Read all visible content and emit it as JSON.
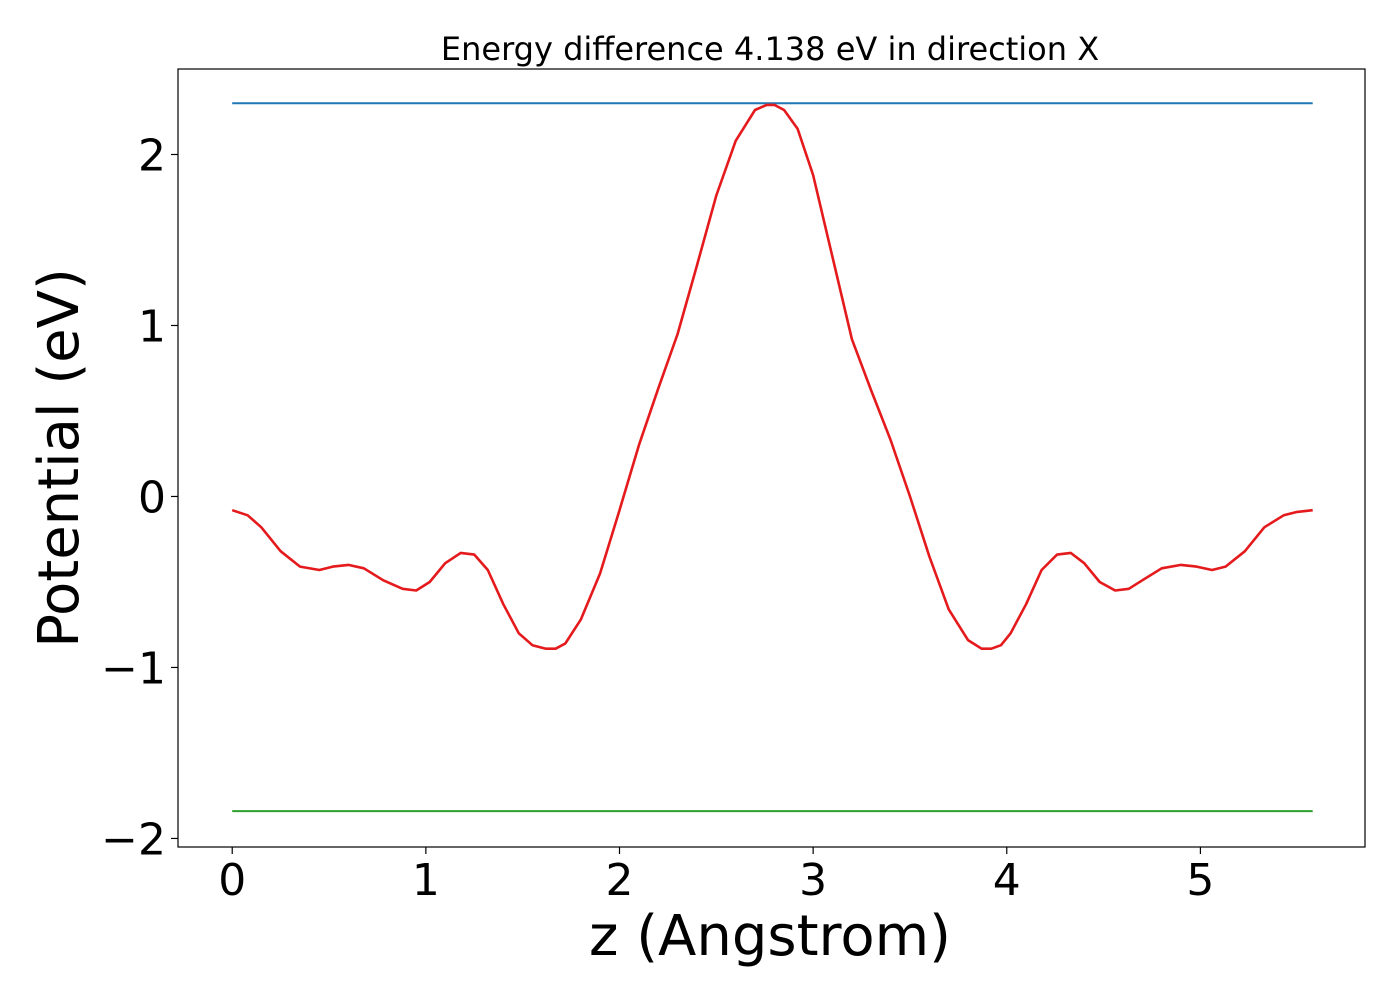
{
  "chart_data": {
    "type": "line",
    "title": "Energy difference 4.138 eV in direction X",
    "xlabel": "z (Angstrom)",
    "ylabel": "Potential (eV)",
    "xlim": [
      -0.28,
      5.85
    ],
    "ylim": [
      -2.05,
      2.5
    ],
    "grid": false,
    "x_ticks": [
      {
        "value": 0,
        "label": "0"
      },
      {
        "value": 1,
        "label": "1"
      },
      {
        "value": 2,
        "label": "2"
      },
      {
        "value": 3,
        "label": "3"
      },
      {
        "value": 4,
        "label": "4"
      },
      {
        "value": 5,
        "label": "5"
      }
    ],
    "y_ticks": [
      {
        "value": -2,
        "label": "−2"
      },
      {
        "value": -1,
        "label": "−1"
      },
      {
        "value": 0,
        "label": "0"
      },
      {
        "value": 1,
        "label": "1"
      },
      {
        "value": 2,
        "label": "2"
      }
    ],
    "series": [
      {
        "color": "#1f77b4",
        "x": [
          0,
          5.58
        ],
        "y": [
          2.3,
          2.3
        ]
      },
      {
        "color": "#2ca02c",
        "x": [
          0,
          5.58
        ],
        "y": [
          -1.84,
          -1.84
        ]
      },
      {
        "color": "#e41a1c",
        "x": [
          0,
          0.08,
          0.15,
          0.25,
          0.35,
          0.45,
          0.52,
          0.6,
          0.68,
          0.78,
          0.88,
          0.95,
          1.02,
          1.1,
          1.18,
          1.25,
          1.32,
          1.4,
          1.48,
          1.55,
          1.62,
          1.67,
          1.72,
          1.8,
          1.9,
          2.0,
          2.1,
          2.2,
          2.3,
          2.4,
          2.5,
          2.6,
          2.7,
          2.76,
          2.8,
          2.85,
          2.92,
          3.0,
          3.1,
          3.2,
          3.3,
          3.4,
          3.5,
          3.6,
          3.7,
          3.8,
          3.87,
          3.92,
          3.97,
          4.02,
          4.1,
          4.18,
          4.26,
          4.33,
          4.4,
          4.48,
          4.56,
          4.63,
          4.7,
          4.8,
          4.9,
          4.98,
          5.06,
          5.13,
          5.23,
          5.33,
          5.43,
          5.5,
          5.58
        ],
        "y": [
          -0.08,
          -0.11,
          -0.18,
          -0.32,
          -0.41,
          -0.43,
          -0.41,
          -0.4,
          -0.42,
          -0.49,
          -0.54,
          -0.55,
          -0.5,
          -0.39,
          -0.33,
          -0.34,
          -0.43,
          -0.63,
          -0.8,
          -0.87,
          -0.89,
          -0.89,
          -0.86,
          -0.72,
          -0.45,
          -0.08,
          0.3,
          0.63,
          0.95,
          1.35,
          1.76,
          2.08,
          2.26,
          2.29,
          2.29,
          2.26,
          2.15,
          1.88,
          1.4,
          0.92,
          0.62,
          0.33,
          0.0,
          -0.35,
          -0.66,
          -0.84,
          -0.89,
          -0.89,
          -0.87,
          -0.8,
          -0.63,
          -0.43,
          -0.34,
          -0.33,
          -0.39,
          -0.5,
          -0.55,
          -0.54,
          -0.49,
          -0.42,
          -0.4,
          -0.41,
          -0.43,
          -0.41,
          -0.32,
          -0.18,
          -0.11,
          -0.09,
          -0.08
        ]
      }
    ]
  }
}
